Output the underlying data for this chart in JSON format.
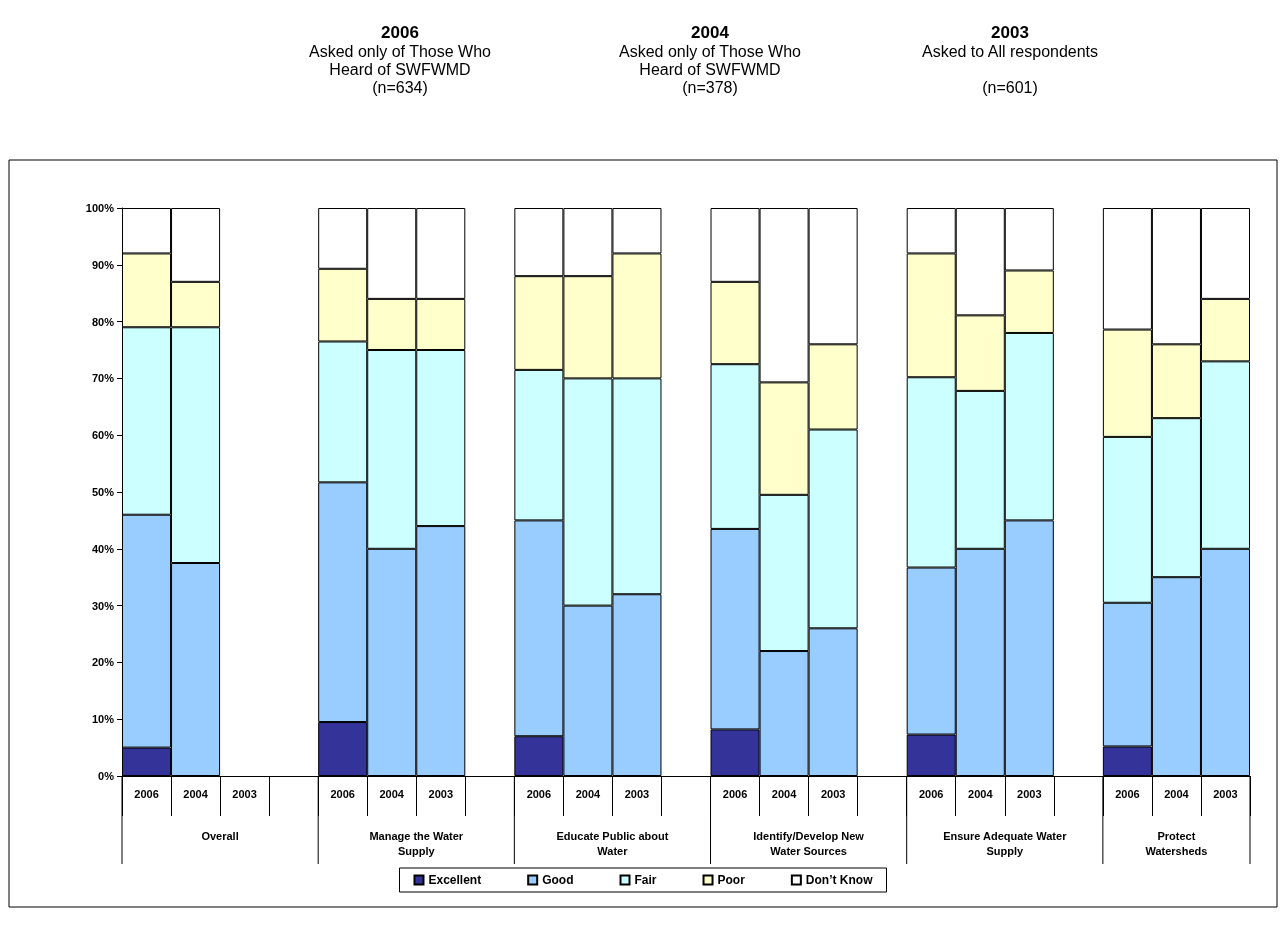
{
  "chart_data": {
    "type": "bar",
    "stacked": true,
    "annotations": [
      "2006\nAsked only of Those Who\nHeard of SWFWMD\n(n=634)",
      "2004\nAsked only of Those Who\nHeard of SWFWMD\n(n=378)",
      "2003\nAsked to All respondents\n\n(n=601)",
      "Overall",
      "Manage the Water\nSupply",
      "Educate Public about\nWater",
      "Identify/Develop New\nWater Sources",
      "Ensure Adequate Water\nSupply",
      "Protect\nWatersheds"
    ],
    "categories": [
      "2006",
      "2004",
      "2003",
      null,
      "2006",
      "2004",
      "2003",
      null,
      "2006",
      "2004",
      "2003",
      null,
      "2006",
      "2004",
      "2003",
      null,
      "2006",
      "2004",
      "2003",
      null,
      "2006",
      "2004",
      "2003"
    ],
    "series": [
      {
        "name": "Excellent",
        "color": "#333399",
        "values": [
          5,
          null,
          null,
          null,
          9.5,
          null,
          null,
          null,
          7,
          null,
          null,
          null,
          8.2,
          null,
          null,
          null,
          7.3,
          null,
          null,
          null,
          5.2,
          null,
          null
        ]
      },
      {
        "name": "Good",
        "color": "#99ccff",
        "values": [
          41,
          37.5,
          null,
          null,
          42.2,
          40,
          44,
          null,
          38,
          30,
          32,
          null,
          35.3,
          22,
          26,
          null,
          29.4,
          40,
          45,
          null,
          25.3,
          35,
          40
        ]
      },
      {
        "name": "Fair",
        "color": "#ccffff",
        "values": [
          33,
          41.5,
          null,
          null,
          24.8,
          35,
          31,
          null,
          26.5,
          40,
          38,
          null,
          29,
          27.5,
          35,
          null,
          33.5,
          27.8,
          33,
          null,
          29.2,
          28,
          33
        ]
      },
      {
        "name": "Poor",
        "color": "#ffffcc",
        "values": [
          13,
          8,
          null,
          null,
          12.8,
          9,
          9,
          null,
          16.5,
          18,
          22,
          null,
          14.5,
          19.8,
          15,
          null,
          21.8,
          13.3,
          11,
          null,
          18.9,
          13,
          11
        ]
      },
      {
        "name": "Don’t Know",
        "color": "#ffffff",
        "values": [
          8,
          13,
          null,
          null,
          10.7,
          16,
          16,
          null,
          12,
          12,
          8,
          null,
          13,
          30.7,
          24,
          null,
          8,
          18.9,
          11,
          null,
          21.4,
          24,
          16
        ]
      }
    ],
    "ylim": [
      0,
      100
    ],
    "yticks": [
      {
        "value": 0,
        "label": "0%"
      },
      {
        "value": 10,
        "label": "10%"
      },
      {
        "value": 20,
        "label": "20%"
      },
      {
        "value": 30,
        "label": "30%"
      },
      {
        "value": 40,
        "label": "40%"
      },
      {
        "value": 50,
        "label": "50%"
      },
      {
        "value": 60,
        "label": "60%"
      },
      {
        "value": 70,
        "label": "70%"
      },
      {
        "value": 80,
        "label": "80%"
      },
      {
        "value": 90,
        "label": "90%"
      },
      {
        "value": 100,
        "label": "100%"
      }
    ],
    "grid": false,
    "legend": "bottom"
  }
}
